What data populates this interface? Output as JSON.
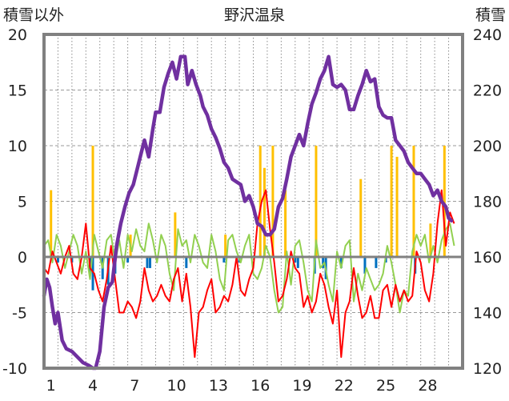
{
  "chart_data": {
    "type": "line",
    "title": "野沢温泉",
    "left_axis_label": "積雪以外",
    "right_axis_label": "積雪",
    "x_ticks": [
      "1",
      "4",
      "7",
      "10",
      "13",
      "16",
      "19",
      "22",
      "25",
      "28"
    ],
    "left_ticks": [
      "20",
      "15",
      "10",
      "5",
      "0",
      "-5",
      "-10"
    ],
    "right_ticks": [
      "240",
      "220",
      "200",
      "180",
      "160",
      "140",
      "120"
    ],
    "xlim": [
      0,
      30
    ],
    "ylim_left": [
      -10,
      20
    ],
    "ylim_right": [
      120,
      240
    ],
    "grid": true,
    "colors": {
      "snow_depth": "#7030a0",
      "temp_max": "#ff0000",
      "temp_min": "#92d050",
      "precip": "#ffc000",
      "snow_change": "#0070c0",
      "frame": "#808080"
    },
    "series": [
      {
        "axis": "right",
        "x": [
          0,
          0.2,
          0.4,
          0.6,
          0.8,
          1,
          1.3,
          1.6,
          2,
          2.4,
          2.8,
          3.2,
          3.5,
          3.7,
          4,
          4.3,
          4.6,
          4.9,
          5.2,
          5.5,
          5.8,
          6.1,
          6.4,
          6.7,
          7,
          7.2,
          7.5,
          7.8,
          8,
          8.3,
          8.6,
          8.9,
          9.2,
          9.5,
          9.8,
          10.1,
          10.3,
          10.6,
          10.9,
          11.2,
          11.4,
          11.7,
          12,
          12.3,
          12.6,
          12.9,
          13.2,
          13.5,
          13.8,
          14.1,
          14.4,
          14.7,
          15,
          15.3,
          15.6,
          15.9,
          16.2,
          16.5,
          16.8,
          17.1,
          17.4,
          17.7,
          18,
          18.3,
          18.6,
          18.9,
          19.2,
          19.5,
          19.8,
          20.1,
          20.4,
          20.7,
          21,
          21.3,
          21.6,
          21.9,
          22.2,
          22.5,
          22.8,
          23.1,
          23.4,
          23.7,
          24,
          24.3,
          24.6,
          24.9,
          25.2,
          25.5,
          25.8,
          26.1,
          26.4,
          26.7,
          27,
          27.3,
          27.6,
          27.9,
          28.2,
          28.5,
          28.8,
          29,
          29.2
        ],
        "values": [
          146,
          152,
          149,
          142,
          136,
          140,
          130,
          127,
          126,
          124,
          122,
          121,
          120,
          120,
          126,
          142,
          149,
          151,
          164,
          172,
          178,
          183,
          186,
          192,
          198,
          202,
          196,
          206,
          212,
          212,
          221,
          226,
          230,
          224,
          232,
          232,
          222,
          227,
          222,
          218,
          214,
          211,
          206,
          203,
          199,
          194,
          192,
          188,
          187,
          186,
          180,
          182,
          178,
          172,
          171,
          168,
          168,
          170,
          178,
          181,
          188,
          196,
          200,
          204,
          200,
          208,
          215,
          219,
          224,
          227,
          232,
          222,
          221,
          222,
          220,
          213,
          213,
          218,
          222,
          227,
          223,
          224,
          214,
          211,
          210,
          210,
          202,
          200,
          198,
          194,
          192,
          190,
          190,
          188,
          186,
          182,
          184,
          180,
          178,
          174,
          173
        ]
      },
      {
        "axis": "left",
        "x": [
          0,
          0.3,
          0.6,
          0.9,
          1.2,
          1.5,
          1.8,
          2.1,
          2.4,
          2.7,
          3,
          3.3,
          3.6,
          3.9,
          4.2,
          4.5,
          4.8,
          5.1,
          5.4,
          5.7,
          6,
          6.3,
          6.6,
          6.9,
          7.2,
          7.5,
          7.8,
          8.1,
          8.4,
          8.7,
          9,
          9.3,
          9.6,
          9.9,
          10.2,
          10.5,
          10.8,
          11.1,
          11.4,
          11.7,
          12,
          12.3,
          12.6,
          12.9,
          13.2,
          13.5,
          13.8,
          14.1,
          14.4,
          14.7,
          15,
          15.3,
          15.6,
          15.9,
          16.2,
          16.5,
          16.8,
          17.1,
          17.4,
          17.7,
          18,
          18.3,
          18.6,
          18.9,
          19.2,
          19.5,
          19.8,
          20.1,
          20.4,
          20.7,
          21,
          21.3,
          21.6,
          21.9,
          22.2,
          22.5,
          22.8,
          23.1,
          23.4,
          23.7,
          24,
          24.3,
          24.6,
          24.9,
          25.2,
          25.5,
          25.8,
          26.1,
          26.4,
          26.7,
          27,
          27.3,
          27.6,
          27.9,
          28.2,
          28.5,
          28.8,
          29.1,
          29.4
        ],
        "values": [
          -1,
          -1.5,
          0.5,
          -0.5,
          -1.5,
          0,
          1,
          -1.5,
          -2,
          0,
          3,
          -1,
          -1.5,
          -3,
          -4,
          -2,
          1,
          -2,
          -5,
          -5,
          -4,
          -4.5,
          -5.5,
          -4,
          -1,
          -3,
          -4,
          -3.5,
          -2.5,
          -3.5,
          -4,
          -2,
          -1,
          -4,
          -1.5,
          -4.5,
          -9,
          -5,
          -4.5,
          -3,
          -2,
          -5,
          -4.5,
          -3.5,
          -4,
          -2.5,
          0,
          -3,
          -3.5,
          -2,
          -1,
          3,
          5,
          6,
          2.5,
          -0.5,
          -4,
          -3.5,
          -2,
          0.5,
          -1,
          -1.5,
          -4.5,
          -3.5,
          -5,
          -4,
          -1.5,
          -2.5,
          -4.5,
          -6,
          -3,
          -9,
          -5,
          -4,
          -1,
          -3.5,
          -5.5,
          -5,
          -3.5,
          -5.5,
          -5.5,
          -3,
          -2.5,
          -4.5,
          -2.5,
          -4,
          -3,
          -4,
          -3.5,
          0.5,
          -0.5,
          -3,
          -4,
          -1.5,
          3,
          6,
          1,
          4,
          3
        ]
      },
      {
        "axis": "left",
        "x": [
          0,
          0.3,
          0.6,
          0.9,
          1.2,
          1.5,
          1.8,
          2.1,
          2.4,
          2.7,
          3,
          3.3,
          3.6,
          3.9,
          4.2,
          4.5,
          4.8,
          5.1,
          5.4,
          5.7,
          6,
          6.3,
          6.6,
          6.9,
          7.2,
          7.5,
          7.8,
          8.1,
          8.4,
          8.7,
          9,
          9.3,
          9.6,
          9.9,
          10.2,
          10.5,
          10.8,
          11.1,
          11.4,
          11.7,
          12,
          12.3,
          12.6,
          12.9,
          13.2,
          13.5,
          13.8,
          14.1,
          14.4,
          14.7,
          15,
          15.3,
          15.6,
          15.9,
          16.2,
          16.5,
          16.8,
          17.1,
          17.4,
          17.7,
          18,
          18.3,
          18.6,
          18.9,
          19.2,
          19.5,
          19.8,
          20.1,
          20.4,
          20.7,
          21,
          21.3,
          21.6,
          21.9,
          22.2,
          22.5,
          22.8,
          23.1,
          23.4,
          23.7,
          24,
          24.3,
          24.6,
          24.9,
          25.2,
          25.5,
          25.8,
          26.1,
          26.4,
          26.7,
          27,
          27.3,
          27.6,
          27.9,
          28.2,
          28.5,
          28.8,
          29.1,
          29.4
        ],
        "values": [
          1,
          1.5,
          -0.5,
          2,
          1,
          -1,
          0.5,
          2,
          1,
          -1.5,
          0.5,
          -2,
          2,
          0.5,
          -1,
          1.5,
          2,
          -0.5,
          1.5,
          -1,
          2,
          0.5,
          2.5,
          1,
          0.5,
          3,
          1.5,
          -0.5,
          2,
          1,
          -1.5,
          -3,
          2.5,
          1,
          1.5,
          -0.5,
          2,
          1,
          -0.5,
          -1,
          2,
          0.5,
          -2,
          -3,
          1.5,
          2,
          0.5,
          -0.5,
          1,
          2,
          -1.5,
          -2,
          -1,
          1,
          0,
          -3,
          -5,
          -4.5,
          0.5,
          -2.5,
          1,
          1.5,
          -0.5,
          -3,
          -4,
          1.5,
          -1,
          -0.5,
          -2.5,
          -4,
          0.5,
          -1,
          1,
          1.5,
          -4,
          -1.5,
          -3,
          -1,
          -2,
          -3,
          -2.5,
          -1.5,
          1,
          -0.5,
          -2.5,
          -5,
          -3,
          -3.5,
          0.5,
          2,
          1,
          2,
          -0.5,
          1,
          -0.5,
          1.5,
          2.5,
          3,
          1
        ]
      },
      {
        "axis": "left",
        "x": [
          0.5,
          3.5,
          6.2,
          9.4,
          13,
          15.5,
          15.8,
          16.4,
          17.3,
          19.5,
          22.7,
          24.9,
          25.3,
          26.5,
          27.7,
          28.7
        ],
        "values": [
          6,
          10,
          2,
          4,
          2,
          10,
          8,
          10,
          6,
          10,
          7,
          10,
          9,
          10,
          3,
          10
        ]
      },
      {
        "axis": "left",
        "x": [
          1,
          2,
          3.3,
          3.5,
          4.2,
          4.6,
          5.1,
          6,
          7.4,
          7.6,
          10.2,
          12.9,
          14,
          18,
          18.2,
          19.4,
          20,
          20.2,
          21.3,
          23,
          23.8,
          24.5,
          26.6
        ],
        "values": [
          -0.5,
          -0.5,
          -1.5,
          -3,
          -2,
          -2.5,
          -1.5,
          -0.5,
          -1,
          -1,
          -1,
          -0.5,
          -0.5,
          -0.5,
          -1,
          -1.5,
          -1,
          -2,
          -1,
          -1.5,
          -1,
          -0.5,
          -1.5
        ]
      }
    ]
  }
}
